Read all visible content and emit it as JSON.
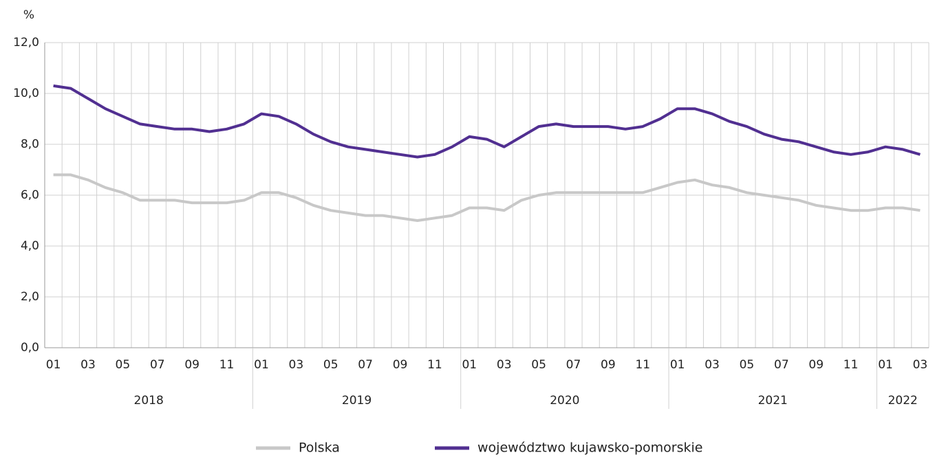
{
  "chart_data": {
    "type": "line",
    "y_label": "%",
    "categories": [
      "01",
      null,
      "03",
      null,
      "05",
      null,
      "07",
      null,
      "09",
      null,
      "11",
      null,
      "01",
      null,
      "03",
      null,
      "05",
      null,
      "07",
      null,
      "09",
      null,
      "11",
      null,
      "01",
      null,
      "03",
      null,
      "05",
      null,
      "07",
      null,
      "09",
      null,
      "11",
      null,
      "01",
      null,
      "03",
      null,
      "05",
      null,
      "07",
      null,
      "09",
      null,
      "11",
      null,
      "01",
      null,
      "03"
    ],
    "years": [
      "2018",
      "2019",
      "2020",
      "2021",
      "2022"
    ],
    "series": [
      {
        "name": "Polska",
        "color": "#c8c8c8",
        "values": [
          6.8,
          6.8,
          6.6,
          6.3,
          6.1,
          5.8,
          5.8,
          5.8,
          5.7,
          5.7,
          5.7,
          5.8,
          6.1,
          6.1,
          5.9,
          5.6,
          5.4,
          5.3,
          5.2,
          5.2,
          5.1,
          5.0,
          5.1,
          5.2,
          5.5,
          5.5,
          5.4,
          5.8,
          6.0,
          6.1,
          6.1,
          6.1,
          6.1,
          6.1,
          6.1,
          6.3,
          6.5,
          6.6,
          6.4,
          6.3,
          6.1,
          6.0,
          5.9,
          5.8,
          5.6,
          5.5,
          5.4,
          5.4,
          5.5,
          5.5,
          5.4
        ]
      },
      {
        "name": "województwo kujawsko-pomorskie",
        "color": "#512f91",
        "values": [
          10.3,
          10.2,
          9.8,
          9.4,
          9.1,
          8.8,
          8.7,
          8.6,
          8.6,
          8.5,
          8.6,
          8.8,
          9.2,
          9.1,
          8.8,
          8.4,
          8.1,
          7.9,
          7.8,
          7.7,
          7.6,
          7.5,
          7.6,
          7.9,
          8.3,
          8.2,
          7.9,
          8.3,
          8.7,
          8.8,
          8.7,
          8.7,
          8.7,
          8.6,
          8.7,
          9.0,
          9.4,
          9.4,
          9.2,
          8.9,
          8.7,
          8.4,
          8.2,
          8.1,
          7.9,
          7.7,
          7.6,
          7.7,
          7.9,
          7.8,
          7.6
        ]
      }
    ],
    "ylim": [
      0,
      12
    ],
    "yticks": [
      {
        "value": 0,
        "label": "0,0"
      },
      {
        "value": 2,
        "label": "2,0"
      },
      {
        "value": 4,
        "label": "4,0"
      },
      {
        "value": 6,
        "label": "6,0"
      },
      {
        "value": 8,
        "label": "8,0"
      },
      {
        "value": 10,
        "label": "10,0"
      },
      {
        "value": 12,
        "label": "12,0"
      }
    ],
    "grid": true
  }
}
